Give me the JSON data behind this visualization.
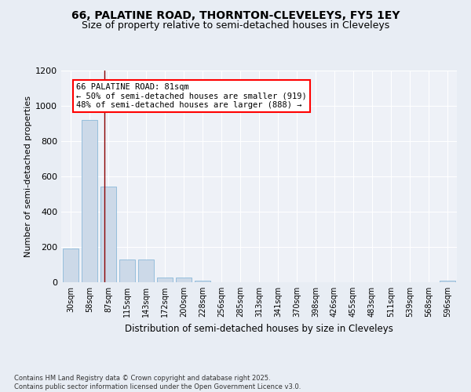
{
  "title1": "66, PALATINE ROAD, THORNTON-CLEVELEYS, FY5 1EY",
  "title2": "Size of property relative to semi-detached houses in Cleveleys",
  "xlabel": "Distribution of semi-detached houses by size in Cleveleys",
  "ylabel": "Number of semi-detached properties",
  "categories": [
    "30sqm",
    "58sqm",
    "87sqm",
    "115sqm",
    "143sqm",
    "172sqm",
    "200sqm",
    "228sqm",
    "256sqm",
    "285sqm",
    "313sqm",
    "341sqm",
    "370sqm",
    "398sqm",
    "426sqm",
    "455sqm",
    "483sqm",
    "511sqm",
    "539sqm",
    "568sqm",
    "596sqm"
  ],
  "values": [
    190,
    920,
    540,
    130,
    130,
    25,
    25,
    10,
    0,
    0,
    0,
    0,
    0,
    0,
    0,
    0,
    0,
    0,
    0,
    0,
    10
  ],
  "bar_color": "#ccd9e8",
  "bar_edge_color": "#7aafd4",
  "red_line_x": 1.78,
  "red_line_label": "66 PALATINE ROAD: 81sqm",
  "annotation_smaller": "← 50% of semi-detached houses are smaller (919)",
  "annotation_larger": "48% of semi-detached houses are larger (888) →",
  "ylim": [
    0,
    1200
  ],
  "yticks": [
    0,
    200,
    400,
    600,
    800,
    1000,
    1200
  ],
  "bg_color": "#e8edf4",
  "plot_bg_color": "#eef1f7",
  "footer": "Contains HM Land Registry data © Crown copyright and database right 2025.\nContains public sector information licensed under the Open Government Licence v3.0.",
  "title1_fontsize": 10,
  "title2_fontsize": 9,
  "xlabel_fontsize": 8.5,
  "ylabel_fontsize": 8,
  "annotation_fontsize": 7.5,
  "tick_fontsize": 7,
  "footer_fontsize": 6
}
